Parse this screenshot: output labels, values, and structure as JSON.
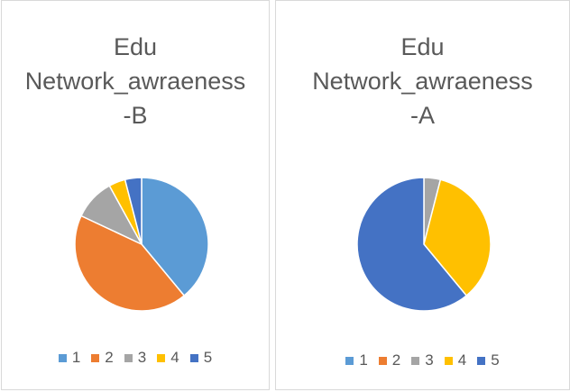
{
  "chart_data": [
    {
      "type": "pie",
      "title": "Edu Network_awraeness-B",
      "categories": [
        "1",
        "2",
        "3",
        "4",
        "5"
      ],
      "values": [
        39,
        43,
        10,
        4,
        4
      ],
      "colors": [
        "#5b9bd5",
        "#ed7d31",
        "#a5a5a5",
        "#ffc000",
        "#4472c4"
      ],
      "legend": "bottom"
    },
    {
      "type": "pie",
      "title": "Edu Network_awraeness-A",
      "categories": [
        "1",
        "2",
        "3",
        "4",
        "5"
      ],
      "values": [
        0,
        0,
        4,
        35,
        61
      ],
      "colors": [
        "#5b9bd5",
        "#ed7d31",
        "#a5a5a5",
        "#ffc000",
        "#4472c4"
      ],
      "legend": "bottom"
    }
  ]
}
